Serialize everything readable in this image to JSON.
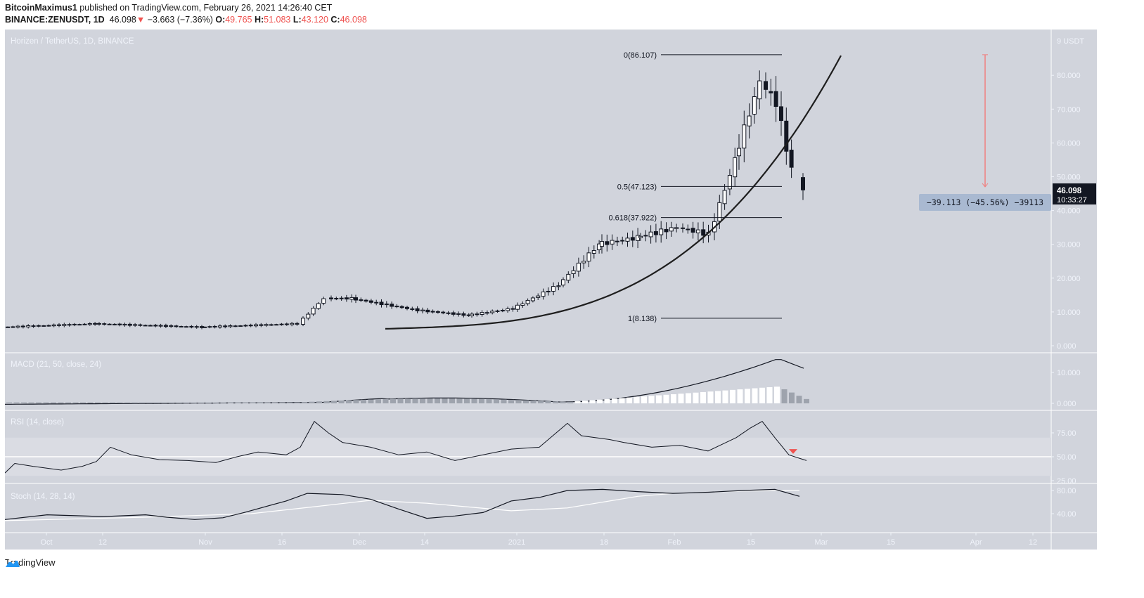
{
  "header": {
    "publisher": "BitcoinMaximus1",
    "published_text": " published on TradingView.com, February 26, 2021 14:26:40 CET",
    "symbol": "BINANCE:ZENUSDT, 1D",
    "last": "46.098",
    "change": "−3.663 (−7.36%)",
    "open_label": "O:",
    "open": "49.765",
    "high_label": "H:",
    "high": "51.083",
    "low_label": "L:",
    "low": "43.120",
    "close_label": "C:",
    "close": "46.098"
  },
  "pane_titles": {
    "main": "Horizen / TetherUS, 1D, BINANCE",
    "macd": "MACD (21, 50, close, 24)",
    "rsi": "RSI (14, close)",
    "stoch": "Stoch (14, 28, 14)"
  },
  "price_axis": {
    "unit": "USDT",
    "top_label": "9",
    "ticks": [
      "80.000",
      "70.000",
      "60.000",
      "50.000",
      "40.000",
      "30.000",
      "20.000",
      "10.000",
      "0.000"
    ],
    "current_price": "46.098",
    "countdown": "10:33:27"
  },
  "macd_axis": {
    "ticks": [
      "10.000",
      "0.000"
    ]
  },
  "rsi_axis": {
    "ticks": [
      "75.00",
      "50.00",
      "25.00"
    ]
  },
  "stoch_axis": {
    "ticks": [
      "80.00",
      "40.00"
    ]
  },
  "time_axis": {
    "ticks": [
      "Oct",
      "12",
      "Nov",
      "16",
      "Dec",
      "14",
      "2021",
      "18",
      "Feb",
      "15",
      "Mar",
      "15",
      "Apr",
      "12"
    ]
  },
  "fib_levels": [
    {
      "label": "0(86.107)",
      "value": 86.107
    },
    {
      "label": "0.5(47.123)",
      "value": 47.123
    },
    {
      "label": "0.618(37.922)",
      "value": 37.922
    },
    {
      "label": "1(8.138)",
      "value": 8.138
    }
  ],
  "measure_label": "−39.113 (−45.56%) −39113",
  "footer": {
    "brand": "TradingView"
  },
  "colors": {
    "background": "#d1d4dc",
    "down_arrow": "#ef5350",
    "price_label_bg": "#131722",
    "measure_bg": "#a9b9d1",
    "measure_line": "#f08080"
  },
  "chart_data": {
    "type": "candlestick",
    "title": "Horizen / TetherUS, 1D, BINANCE",
    "symbol": "BINANCE:ZENUSDT",
    "timeframe": "1D",
    "ylabel": "USDT",
    "ylim": [
      0,
      90
    ],
    "x_ticks": [
      "Oct",
      "12",
      "Nov",
      "16",
      "Dec",
      "14",
      "2021",
      "18",
      "Feb",
      "15",
      "Mar",
      "15",
      "Apr",
      "12"
    ],
    "approx_price_path": {
      "x": [
        "Sep 24",
        "Oct 12",
        "Nov 1",
        "Nov 20",
        "Nov 25",
        "Dec 1",
        "Dec 14",
        "Dec 24",
        "Jan 1",
        "Jan 11",
        "Jan 18",
        "Jan 25",
        "Feb 1",
        "Feb 8",
        "Feb 15",
        "Feb 18",
        "Feb 21",
        "Feb 24",
        "Feb 26"
      ],
      "close": [
        5.5,
        6.5,
        5.5,
        6.5,
        14,
        14,
        10.5,
        9,
        11,
        18,
        30,
        32,
        35,
        33,
        55,
        78,
        72,
        52,
        46.1
      ]
    },
    "last_candle": {
      "open": 49.765,
      "high": 51.083,
      "low": 43.12,
      "close": 46.098
    },
    "fibonacci": {
      "0": 86.107,
      "0.5": 47.123,
      "0.618": 37.922,
      "1": 8.138
    },
    "measure": {
      "change": -39.113,
      "percent": -45.56
    },
    "indicators": [
      {
        "name": "MACD (21, 50, close, 24)",
        "ylim": [
          0,
          15
        ],
        "peak": 14.5,
        "last": 11
      },
      {
        "name": "RSI (14, close)",
        "bands": [
          30,
          50,
          70
        ],
        "ticks": [
          25,
          50,
          75
        ],
        "last": 46,
        "peak": 87
      },
      {
        "name": "Stoch (14, 28, 14)",
        "ticks": [
          40,
          80
        ],
        "last": 73
      }
    ]
  }
}
